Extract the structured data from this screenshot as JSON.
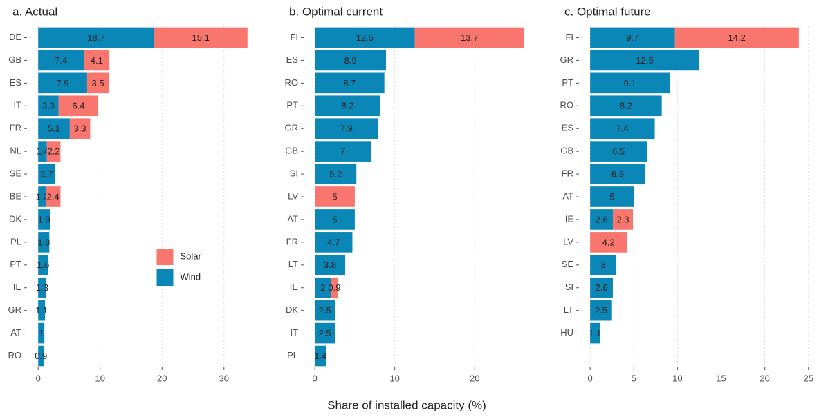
{
  "x_label": "Share of installed capacity (%)",
  "chart_data": [
    {
      "type": "stacked-barh",
      "title": "a. Actual",
      "categories": [
        "DE",
        "GB",
        "ES",
        "IT",
        "FR",
        "NL",
        "SE",
        "BE",
        "DK",
        "PL",
        "PT",
        "IE",
        "GR",
        "AT",
        "RO"
      ],
      "series": [
        {
          "name": "Wind",
          "color": "#0a87b6",
          "values": [
            18.7,
            7.4,
            7.9,
            3.3,
            5.1,
            1.4,
            2.7,
            1.2,
            1.9,
            1.8,
            1.6,
            1.3,
            1.1,
            1,
            0.9
          ]
        },
        {
          "name": "Solar",
          "color": "#f8766d",
          "values": [
            15.1,
            4.1,
            3.5,
            6.4,
            3.3,
            2.2,
            null,
            2.4,
            null,
            null,
            null,
            null,
            null,
            null,
            null
          ]
        }
      ],
      "xlim": [
        -1.7,
        35.5
      ],
      "xticks": [
        0,
        10,
        20,
        30
      ],
      "grid": true,
      "legend": "center-right"
    },
    {
      "type": "stacked-barh",
      "title": "b. Optimal current",
      "categories": [
        "FI",
        "ES",
        "RO",
        "PT",
        "GR",
        "GB",
        "SI",
        "LV",
        "AT",
        "FR",
        "LT",
        "IE",
        "DK",
        "IT",
        "PL"
      ],
      "series": [
        {
          "name": "Wind",
          "color": "#0a87b6",
          "values": [
            12.5,
            8.9,
            8.7,
            8.2,
            7.9,
            7,
            5.2,
            null,
            5,
            4.7,
            3.8,
            2,
            2.5,
            2.5,
            1.4
          ]
        },
        {
          "name": "Solar",
          "color": "#f8766d",
          "values": [
            13.7,
            null,
            null,
            null,
            null,
            null,
            null,
            5,
            null,
            null,
            null,
            0.9,
            null,
            null,
            null
          ]
        }
      ],
      "xlim": [
        -1.31,
        27.51
      ],
      "xticks": [
        0,
        10,
        20
      ],
      "grid": true,
      "legend": "none"
    },
    {
      "type": "stacked-barh",
      "title": "c. Optimal future",
      "categories": [
        "FI",
        "GR",
        "PT",
        "RO",
        "ES",
        "GB",
        "FR",
        "AT",
        "IE",
        "LV",
        "SE",
        "SI",
        "LT",
        "HU"
      ],
      "series": [
        {
          "name": "Wind",
          "color": "#0a87b6",
          "values": [
            9.7,
            12.5,
            9.1,
            8.2,
            7.4,
            6.5,
            6.3,
            5,
            2.6,
            null,
            3,
            2.6,
            2.5,
            1.1
          ]
        },
        {
          "name": "Solar",
          "color": "#f8766d",
          "values": [
            14.2,
            null,
            null,
            null,
            null,
            null,
            null,
            null,
            2.3,
            4.2,
            null,
            null,
            null,
            null
          ]
        }
      ],
      "xlim": [
        -1.2,
        25.1
      ],
      "xticks": [
        0,
        5,
        10,
        15,
        20,
        25
      ],
      "grid": true,
      "legend": "none"
    }
  ]
}
